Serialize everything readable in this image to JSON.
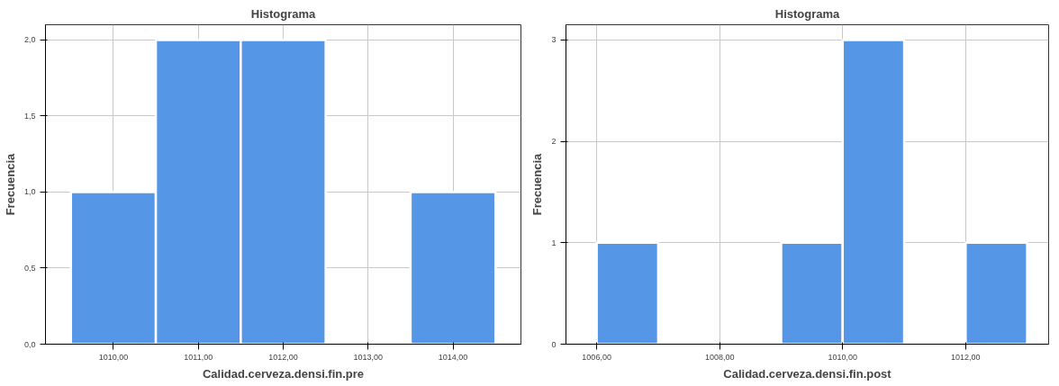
{
  "chart_data": [
    {
      "type": "histogram",
      "title": "Histograma",
      "xlabel": "Calidad.cerveza.densi.fin.pre",
      "ylabel": "Frecuencia",
      "bins": [
        1009.5,
        1010.5,
        1011.5,
        1012.5,
        1013.5,
        1014.5
      ],
      "values": [
        1,
        2,
        2,
        0,
        1
      ],
      "color": "#5596e6",
      "xlim": [
        1009.2,
        1014.8
      ],
      "ylim": [
        0,
        2.1
      ],
      "xticks": [
        {
          "value": 1010,
          "label": "1010,00"
        },
        {
          "value": 1011,
          "label": "1011,00"
        },
        {
          "value": 1012,
          "label": "1012,00"
        },
        {
          "value": 1013,
          "label": "1013,00"
        },
        {
          "value": 1014,
          "label": "1014,00"
        }
      ],
      "yticks": [
        {
          "value": 0,
          "label": "0,0"
        },
        {
          "value": 0.5,
          "label": "0,5"
        },
        {
          "value": 1,
          "label": "1,0"
        },
        {
          "value": 1.5,
          "label": "1,5"
        },
        {
          "value": 2,
          "label": "2,0"
        }
      ],
      "grid": true
    },
    {
      "type": "histogram",
      "title": "Histograma",
      "xlabel": "Calidad.cerveza.densi.fin.post",
      "ylabel": "Frecuencia",
      "bins": [
        1006,
        1007,
        1008,
        1009,
        1010,
        1011,
        1012,
        1013
      ],
      "values": [
        1,
        0,
        0,
        1,
        3,
        0,
        1
      ],
      "color": "#5596e6",
      "xlim": [
        1005.5,
        1013.35
      ],
      "ylim": [
        0,
        3.15
      ],
      "xticks": [
        {
          "value": 1006,
          "label": "1006,00"
        },
        {
          "value": 1008,
          "label": "1008,00"
        },
        {
          "value": 1010,
          "label": "1010,00"
        },
        {
          "value": 1012,
          "label": "1012,00"
        }
      ],
      "yticks": [
        0,
        1,
        2,
        3
      ],
      "grid": true
    }
  ]
}
